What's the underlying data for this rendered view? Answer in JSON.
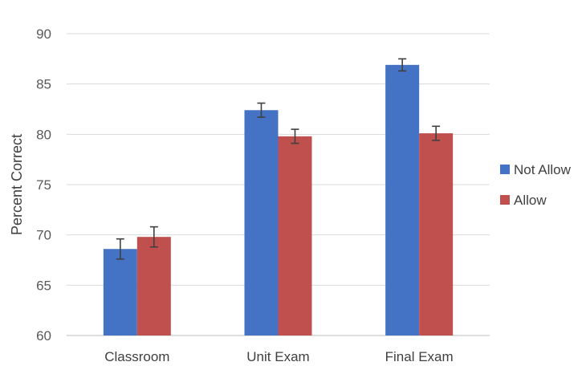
{
  "chart_data": {
    "type": "bar",
    "title": "",
    "xlabel": "",
    "ylabel": "Percent Correct",
    "ylim": [
      60,
      90
    ],
    "yticks": [
      60,
      65,
      70,
      75,
      80,
      85,
      90
    ],
    "grid": true,
    "legend_position": "right",
    "categories": [
      "Classroom",
      "Unit Exam",
      "Final Exam"
    ],
    "series": [
      {
        "name": "Not Allow",
        "color": "#4472c4",
        "values": [
          68.6,
          82.4,
          86.9
        ],
        "error": [
          1.0,
          0.7,
          0.6
        ]
      },
      {
        "name": "Allow",
        "color": "#c0504d",
        "values": [
          69.8,
          79.8,
          80.1
        ],
        "error": [
          1.0,
          0.7,
          0.7
        ]
      }
    ]
  }
}
